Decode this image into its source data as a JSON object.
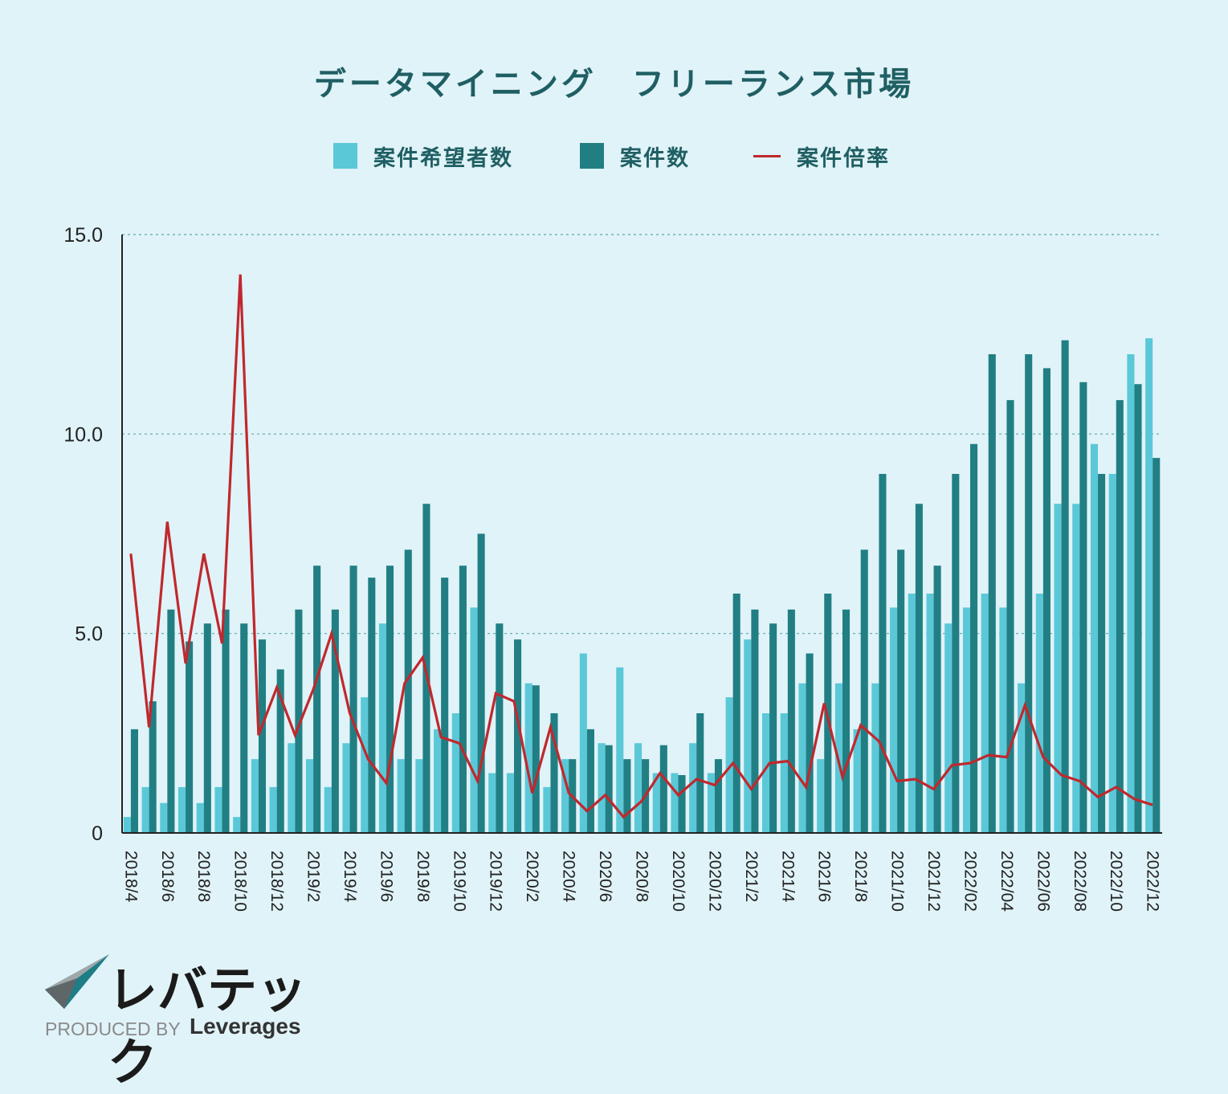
{
  "chart_data": {
    "type": "bar",
    "title": "データマイニング　フリーランス市場",
    "legend": [
      {
        "name": "案件希望者数",
        "kind": "bar",
        "color": "#5bc8d8"
      },
      {
        "name": "案件数",
        "kind": "bar",
        "color": "#217f84"
      },
      {
        "name": "案件倍率",
        "kind": "line",
        "color": "#c0282d"
      }
    ],
    "ylim": [
      0,
      15
    ],
    "yticks": [
      {
        "value": 0,
        "label": "0"
      },
      {
        "value": 5,
        "label": "5.0"
      },
      {
        "value": 10,
        "label": "10.0"
      },
      {
        "value": 15,
        "label": "15.0"
      }
    ],
    "categories": [
      "2018/4",
      "2018/5",
      "2018/6",
      "2018/7",
      "2018/8",
      "2018/9",
      "2018/10",
      "2018/11",
      "2018/12",
      "2019/1",
      "2019/2",
      "2019/3",
      "2019/4",
      "2019/5",
      "2019/6",
      "2019/7",
      "2019/8",
      "2019/9",
      "2019/10",
      "2019/11",
      "2019/12",
      "2020/1",
      "2020/2",
      "2020/3",
      "2020/4",
      "2020/5",
      "2020/6",
      "2020/7",
      "2020/8",
      "2020/9",
      "2020/10",
      "2020/11",
      "2020/12",
      "2021/1",
      "2021/2",
      "2021/3",
      "2021/4",
      "2021/5",
      "2021/6",
      "2021/7",
      "2021/8",
      "2021/9",
      "2021/10",
      "2021/11",
      "2021/12",
      "2022/01",
      "2022/02",
      "2022/03",
      "2022/04",
      "2022/05",
      "2022/06",
      "2022/07",
      "2022/08",
      "2022/09",
      "2022/10",
      "2022/11",
      "2022/12"
    ],
    "xtick_labels": [
      "2018/4",
      "2018/6",
      "2018/8",
      "2018/10",
      "2018/12",
      "2019/2",
      "2019/4",
      "2019/6",
      "2019/8",
      "2019/10",
      "2019/12",
      "2020/2",
      "2020/4",
      "2020/6",
      "2020/8",
      "2020/10",
      "2020/12",
      "2021/2",
      "2021/4",
      "2021/6",
      "2021/8",
      "2021/10",
      "2021/12",
      "2022/02",
      "2022/04",
      "2022/06",
      "2022/08",
      "2022/10",
      "2022/12"
    ],
    "series": [
      {
        "name": "案件希望者数",
        "values": [
          0.4,
          1.15,
          0.75,
          1.15,
          0.75,
          1.15,
          0.4,
          1.85,
          1.15,
          2.25,
          1.85,
          1.15,
          2.25,
          3.4,
          5.25,
          1.85,
          1.85,
          2.6,
          3.0,
          5.65,
          1.5,
          1.5,
          3.75,
          1.15,
          1.85,
          4.5,
          2.25,
          4.15,
          2.25,
          1.5,
          1.5,
          2.25,
          1.5,
          3.4,
          4.85,
          3.0,
          3.0,
          3.75,
          1.85,
          3.75,
          2.6,
          3.75,
          5.65,
          6.0,
          6.0,
          5.25,
          5.65,
          6.0,
          5.65,
          3.75,
          6.0,
          8.25,
          8.25,
          9.75,
          9.0,
          12.0,
          12.4
        ]
      },
      {
        "name": "案件数",
        "values": [
          2.6,
          3.3,
          5.6,
          4.8,
          5.25,
          5.6,
          5.25,
          4.85,
          4.1,
          5.6,
          6.7,
          5.6,
          6.7,
          6.4,
          6.7,
          7.1,
          8.25,
          6.4,
          6.7,
          7.5,
          5.25,
          4.85,
          3.7,
          3.0,
          1.85,
          2.6,
          2.2,
          1.85,
          1.85,
          2.2,
          1.45,
          3.0,
          1.85,
          6.0,
          5.6,
          5.25,
          5.6,
          4.5,
          6.0,
          5.6,
          7.1,
          9.0,
          7.1,
          8.25,
          6.7,
          9.0,
          9.75,
          12.0,
          10.85,
          12.0,
          11.65,
          12.35,
          11.3,
          9.0,
          10.85,
          11.25,
          9.4
        ]
      },
      {
        "name": "案件倍率",
        "values": [
          7.0,
          2.65,
          7.8,
          4.25,
          7.0,
          4.75,
          14.0,
          2.45,
          3.65,
          2.45,
          3.6,
          5.0,
          3.0,
          1.85,
          1.25,
          3.75,
          4.4,
          2.4,
          2.25,
          1.3,
          3.5,
          3.3,
          1.0,
          2.65,
          1.0,
          0.55,
          0.95,
          0.4,
          0.8,
          1.5,
          0.95,
          1.35,
          1.2,
          1.75,
          1.1,
          1.75,
          1.8,
          1.15,
          3.25,
          1.4,
          2.7,
          2.3,
          1.3,
          1.35,
          1.1,
          1.7,
          1.75,
          1.95,
          1.9,
          3.2,
          1.9,
          1.45,
          1.3,
          0.9,
          1.15,
          0.85,
          0.7
        ]
      }
    ]
  },
  "branding": {
    "logo_text": "レバテック",
    "produced_by": "PRODUCED BY",
    "brand": "Leverages"
  }
}
